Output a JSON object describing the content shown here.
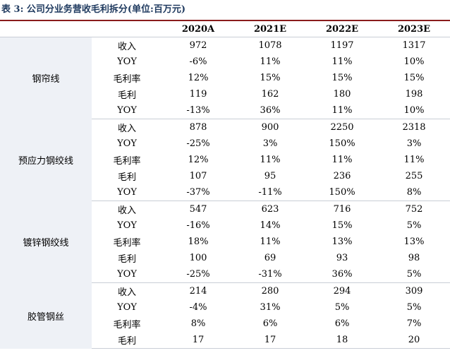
{
  "caption": {
    "label": "表 3:",
    "title": "公司分业务营收毛利拆分(单位:百万元)"
  },
  "columns": [
    "",
    "",
    "2020A",
    "2021E",
    "2022E",
    "2023E"
  ],
  "segments": [
    {
      "name": "钢帘线",
      "rows": [
        {
          "metric": "收入",
          "values": [
            "972",
            "1078",
            "1197",
            "1317"
          ]
        },
        {
          "metric": "YOY",
          "values": [
            "-6%",
            "11%",
            "11%",
            "10%"
          ]
        },
        {
          "metric": "毛利率",
          "values": [
            "12%",
            "15%",
            "15%",
            "15%"
          ]
        },
        {
          "metric": "毛利",
          "values": [
            "119",
            "162",
            "180",
            "198"
          ]
        },
        {
          "metric": "YOY",
          "values": [
            "-13%",
            "36%",
            "11%",
            "10%"
          ]
        }
      ]
    },
    {
      "name": "预应力钢绞线",
      "rows": [
        {
          "metric": "收入",
          "values": [
            "878",
            "900",
            "2250",
            "2318"
          ]
        },
        {
          "metric": "YOY",
          "values": [
            "-25%",
            "3%",
            "150%",
            "3%"
          ]
        },
        {
          "metric": "毛利率",
          "values": [
            "12%",
            "11%",
            "11%",
            "11%"
          ]
        },
        {
          "metric": "毛利",
          "values": [
            "107",
            "95",
            "236",
            "255"
          ]
        },
        {
          "metric": "YOY",
          "values": [
            "-37%",
            "-11%",
            "150%",
            "8%"
          ]
        }
      ]
    },
    {
      "name": "镀锌钢绞线",
      "rows": [
        {
          "metric": "收入",
          "values": [
            "547",
            "623",
            "716",
            "752"
          ]
        },
        {
          "metric": "YOY",
          "values": [
            "-16%",
            "14%",
            "15%",
            "5%"
          ]
        },
        {
          "metric": "毛利率",
          "values": [
            "18%",
            "11%",
            "13%",
            "13%"
          ]
        },
        {
          "metric": "毛利",
          "values": [
            "100",
            "69",
            "93",
            "98"
          ]
        },
        {
          "metric": "YOY",
          "values": [
            "-25%",
            "-31%",
            "36%",
            "5%"
          ]
        }
      ]
    },
    {
      "name": "胶管钢丝",
      "rows": [
        {
          "metric": "收入",
          "values": [
            "214",
            "280",
            "294",
            "309"
          ]
        },
        {
          "metric": "YOY",
          "values": [
            "-4%",
            "31%",
            "5%",
            "5%"
          ]
        },
        {
          "metric": "毛利率",
          "values": [
            "8%",
            "6%",
            "6%",
            "7%"
          ]
        },
        {
          "metric": "毛利",
          "values": [
            "17",
            "17",
            "18",
            "20"
          ]
        }
      ]
    }
  ]
}
